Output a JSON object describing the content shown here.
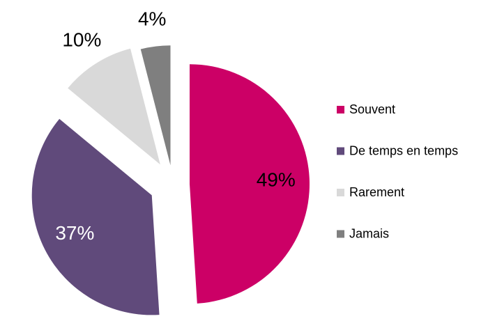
{
  "chart_data": {
    "type": "pie",
    "categories": [
      "Souvent",
      "De temps en temps",
      "Rarement",
      "Jamais"
    ],
    "values": [
      49,
      37,
      10,
      4
    ],
    "value_labels": [
      "49%",
      "37%",
      "10%",
      "4%"
    ],
    "colors": [
      "#cc0066",
      "#604a7b",
      "#d9d9d9",
      "#7f7f7f"
    ],
    "legend": "right"
  }
}
